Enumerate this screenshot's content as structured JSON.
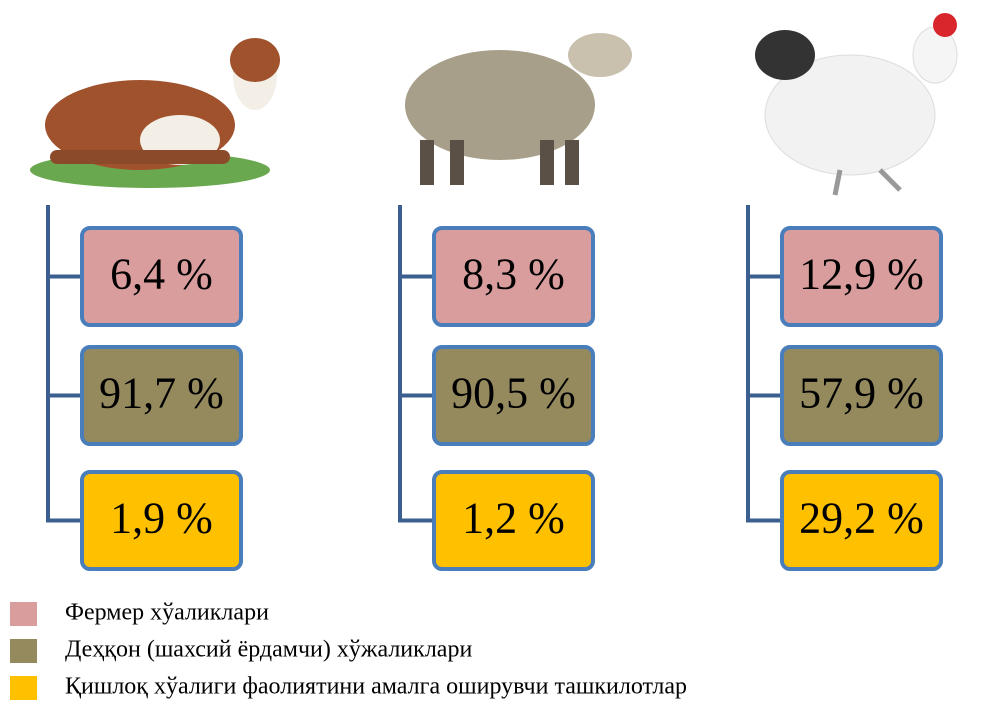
{
  "columns": [
    {
      "boxes": [
        "6,4 %",
        "91,7 %",
        "1,9 %"
      ]
    },
    {
      "boxes": [
        "8,3 %",
        "90,5 %",
        "1,2 %"
      ]
    },
    {
      "boxes": [
        "12,9 %",
        "57,9 %",
        "29,2 %"
      ]
    }
  ],
  "legend": [
    "Фермер хўаликлари",
    "Деҳқон (шахсий ёрдамчи) хўжаликлари",
    "Қишлоқ хўалиги фаолиятини амалга оширувчи ташкилотлар"
  ]
}
